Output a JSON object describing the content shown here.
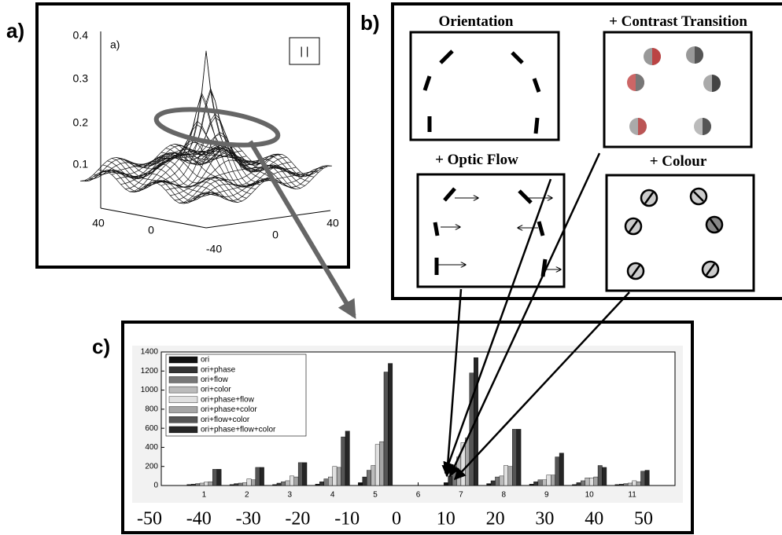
{
  "panel_a": {
    "label": "a)",
    "inset_label": "a)",
    "legend_text": "| |",
    "z_tick_labels": [
      0.4,
      0.3,
      0.2,
      0.1
    ],
    "xy_tick_labels": [
      40,
      0,
      -40,
      0,
      40
    ]
  },
  "panel_b": {
    "label": "b)",
    "conditions": [
      "Orientation",
      "+ Contrast Transition",
      "+ Optic Flow",
      "+ Colour"
    ]
  },
  "panel_c": {
    "label": "c)"
  },
  "chart_data": {
    "type": "bar",
    "categories": [
      "1",
      "2",
      "3",
      "4",
      "5",
      "6",
      "7",
      "8",
      "9",
      "10",
      "11"
    ],
    "x2_labels": [
      -50,
      -40,
      -30,
      -20,
      -10,
      0,
      10,
      20,
      30,
      40,
      50
    ],
    "ylim": [
      0,
      1400
    ],
    "yticks": [
      0,
      200,
      400,
      600,
      800,
      1000,
      1200,
      1400
    ],
    "series": [
      {
        "name": "ori",
        "color": "#111111",
        "values": [
          10,
          10,
          10,
          15,
          30,
          0,
          30,
          20,
          15,
          10,
          10
        ]
      },
      {
        "name": "ori+phase",
        "color": "#333333",
        "values": [
          15,
          20,
          25,
          40,
          90,
          0,
          100,
          50,
          40,
          30,
          15
        ]
      },
      {
        "name": "ori+flow",
        "color": "#777777",
        "values": [
          20,
          25,
          40,
          70,
          160,
          0,
          200,
          90,
          60,
          50,
          20
        ]
      },
      {
        "name": "ori+color",
        "color": "#bbbbbb",
        "values": [
          25,
          30,
          50,
          90,
          210,
          0,
          300,
          100,
          60,
          80,
          25
        ]
      },
      {
        "name": "ori+phase+flow",
        "color": "#e0e0e0",
        "values": [
          35,
          70,
          100,
          200,
          430,
          0,
          450,
          210,
          110,
          80,
          50
        ]
      },
      {
        "name": "ori+phase+color",
        "color": "#a5a5a5",
        "values": [
          40,
          60,
          90,
          190,
          460,
          0,
          500,
          200,
          110,
          90,
          40
        ]
      },
      {
        "name": "ori+flow+color",
        "color": "#555555",
        "values": [
          170,
          190,
          240,
          510,
          1190,
          0,
          1180,
          590,
          300,
          210,
          150
        ]
      },
      {
        "name": "ori+phase+flow+color",
        "color": "#262626",
        "values": [
          170,
          190,
          240,
          570,
          1280,
          0,
          1340,
          590,
          340,
          190,
          160
        ]
      }
    ]
  }
}
